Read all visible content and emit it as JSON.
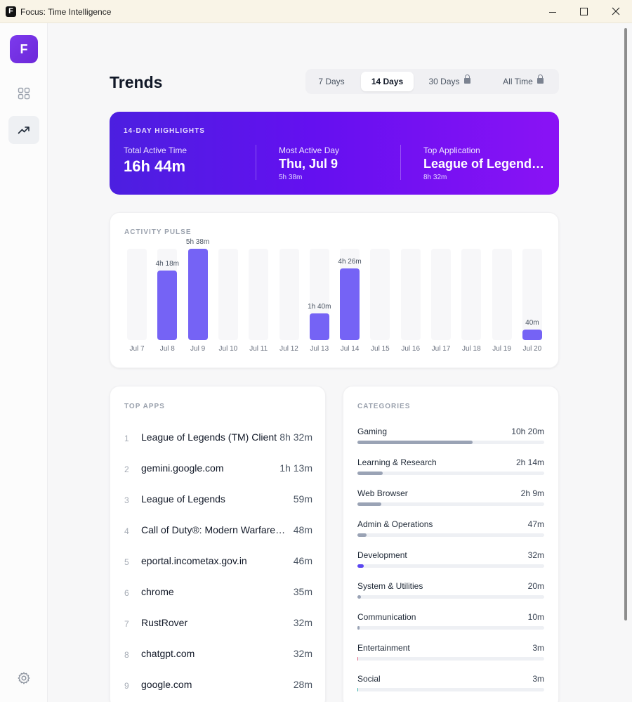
{
  "window": {
    "title": "Focus: Time Intelligence",
    "logo": "F"
  },
  "sidebar": {
    "logo": "F",
    "items": [
      {
        "icon": "grid-icon"
      },
      {
        "icon": "trend-up-icon",
        "active": true
      }
    ],
    "settings_icon": "gear-icon"
  },
  "header": {
    "title": "Trends"
  },
  "range_tabs": [
    {
      "label": "7 Days",
      "locked": false,
      "active": false
    },
    {
      "label": "14 Days",
      "locked": false,
      "active": true
    },
    {
      "label": "30 Days",
      "locked": true,
      "active": false
    },
    {
      "label": "All Time",
      "locked": true,
      "active": false
    }
  ],
  "highlights": {
    "label": "14-DAY HIGHLIGHTS",
    "total": {
      "caption": "Total Active Time",
      "value": "16h 44m"
    },
    "most_active": {
      "caption": "Most Active Day",
      "value": "Thu, Jul 9",
      "sub": "5h 38m"
    },
    "top_app": {
      "caption": "Top Application",
      "value": "League of Legends (TM) Client",
      "sub": "8h 32m"
    }
  },
  "pulse": {
    "label": "ACTIVITY PULSE",
    "days": [
      {
        "day": "Jul 7",
        "minutes": 0,
        "label": ""
      },
      {
        "day": "Jul 8",
        "minutes": 258,
        "label": "4h 18m"
      },
      {
        "day": "Jul 9",
        "minutes": 338,
        "label": "5h 38m"
      },
      {
        "day": "Jul 10",
        "minutes": 0,
        "label": ""
      },
      {
        "day": "Jul 11",
        "minutes": 0,
        "label": ""
      },
      {
        "day": "Jul 12",
        "minutes": 0,
        "label": ""
      },
      {
        "day": "Jul 13",
        "minutes": 100,
        "label": "1h 40m"
      },
      {
        "day": "Jul 14",
        "minutes": 266,
        "label": "4h 26m"
      },
      {
        "day": "Jul 15",
        "minutes": 0,
        "label": ""
      },
      {
        "day": "Jul 16",
        "minutes": 0,
        "label": ""
      },
      {
        "day": "Jul 17",
        "minutes": 0,
        "label": ""
      },
      {
        "day": "Jul 18",
        "minutes": 0,
        "label": ""
      },
      {
        "day": "Jul 19",
        "minutes": 0,
        "label": ""
      },
      {
        "day": "Jul 20",
        "minutes": 40,
        "label": "40m"
      }
    ]
  },
  "top_apps": {
    "label": "TOP APPS",
    "items": [
      {
        "rank": "1",
        "name": "League of Legends (TM) Client",
        "time": "8h 32m"
      },
      {
        "rank": "2",
        "name": "gemini.google.com",
        "time": "1h 13m"
      },
      {
        "rank": "3",
        "name": "League of Legends",
        "time": "59m"
      },
      {
        "rank": "4",
        "name": "Call of Duty®: Modern Warfare® III",
        "time": "48m"
      },
      {
        "rank": "5",
        "name": "eportal.incometax.gov.in",
        "time": "46m"
      },
      {
        "rank": "6",
        "name": "chrome",
        "time": "35m"
      },
      {
        "rank": "7",
        "name": "RustRover",
        "time": "32m"
      },
      {
        "rank": "8",
        "name": "chatgpt.com",
        "time": "32m"
      },
      {
        "rank": "9",
        "name": "google.com",
        "time": "28m"
      }
    ]
  },
  "categories": {
    "label": "CATEGORIES",
    "items": [
      {
        "name": "Gaming",
        "time": "10h 20m",
        "share": 0.618,
        "color": "#9aa3b5"
      },
      {
        "name": "Learning & Research",
        "time": "2h 14m",
        "share": 0.134,
        "color": "#9aa3b5"
      },
      {
        "name": "Web Browser",
        "time": "2h 9m",
        "share": 0.128,
        "color": "#9aa3b5"
      },
      {
        "name": "Admin & Operations",
        "time": "47m",
        "share": 0.047,
        "color": "#9aa3b5"
      },
      {
        "name": "Development",
        "time": "32m",
        "share": 0.032,
        "color": "#5b47f0"
      },
      {
        "name": "System & Utilities",
        "time": "20m",
        "share": 0.02,
        "color": "#9aa3b5"
      },
      {
        "name": "Communication",
        "time": "10m",
        "share": 0.01,
        "color": "#9aa3b5"
      },
      {
        "name": "Entertainment",
        "time": "3m",
        "share": 0.003,
        "color": "#e0607e"
      },
      {
        "name": "Social",
        "time": "3m",
        "share": 0.003,
        "color": "#38b2ac"
      }
    ]
  }
}
